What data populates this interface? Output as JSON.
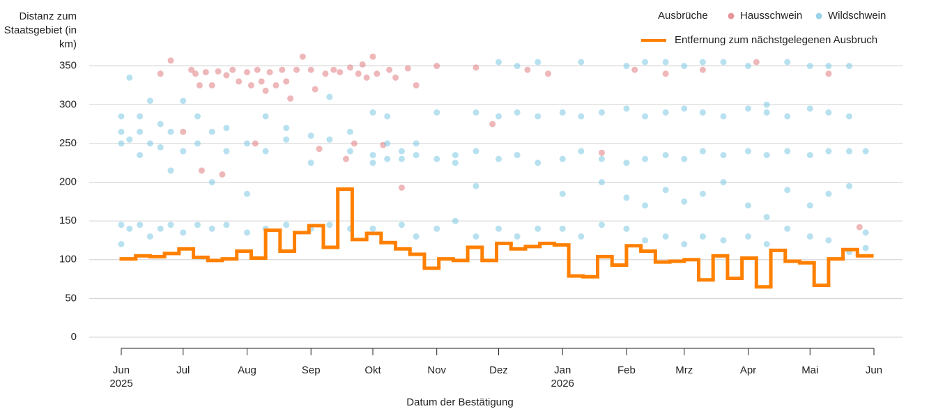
{
  "chart_data": {
    "type": "scatter",
    "y_label": "Distanz zum Staatsgebiet (in km)",
    "x_label": "Datum der Bestätigung",
    "legend_title": "Ausbrüche",
    "xlim": [
      "2025-06-01",
      "2026-06-01"
    ],
    "ylim": [
      0,
      365
    ],
    "yticks": [
      0,
      50,
      100,
      150,
      200,
      250,
      300,
      350
    ],
    "xticks": [
      {
        "value": "2025-06-01",
        "label": "Jun",
        "year": "2025"
      },
      {
        "value": "2025-07-01",
        "label": "Jul"
      },
      {
        "value": "2025-08-01",
        "label": "Aug"
      },
      {
        "value": "2025-09-01",
        "label": "Sep"
      },
      {
        "value": "2025-10-01",
        "label": "Okt"
      },
      {
        "value": "2025-11-01",
        "label": "Nov"
      },
      {
        "value": "2025-12-01",
        "label": "Dez"
      },
      {
        "value": "2026-01-01",
        "label": "Jan",
        "year": "2026"
      },
      {
        "value": "2026-02-01",
        "label": "Feb"
      },
      {
        "value": "2026-03-01",
        "label": "Mrz"
      },
      {
        "value": "2026-04-01",
        "label": "Apr"
      },
      {
        "value": "2026-05-01",
        "label": "Mai"
      },
      {
        "value": "2026-06-01",
        "label": "Jun"
      }
    ],
    "grid": true,
    "series": [
      {
        "name": "Hausschwein",
        "type": "scatter",
        "color": "#e07b7f",
        "x": [
          "2025-06-20",
          "2025-06-25",
          "2025-07-01",
          "2025-07-05",
          "2025-07-07",
          "2025-07-09",
          "2025-07-10",
          "2025-07-12",
          "2025-07-15",
          "2025-07-18",
          "2025-07-20",
          "2025-07-22",
          "2025-07-25",
          "2025-07-28",
          "2025-08-01",
          "2025-08-03",
          "2025-08-05",
          "2025-08-06",
          "2025-08-08",
          "2025-08-10",
          "2025-08-12",
          "2025-08-15",
          "2025-08-18",
          "2025-08-20",
          "2025-08-22",
          "2025-08-25",
          "2025-08-28",
          "2025-09-01",
          "2025-09-03",
          "2025-09-05",
          "2025-09-08",
          "2025-09-12",
          "2025-09-15",
          "2025-09-18",
          "2025-09-20",
          "2025-09-22",
          "2025-09-24",
          "2025-09-26",
          "2025-09-28",
          "2025-10-01",
          "2025-10-03",
          "2025-10-06",
          "2025-10-09",
          "2025-10-12",
          "2025-10-15",
          "2025-10-18",
          "2025-10-22",
          "2025-11-01",
          "2025-11-20",
          "2025-11-28",
          "2025-12-15",
          "2025-12-25",
          "2026-01-20",
          "2026-02-05",
          "2026-02-20",
          "2026-03-10",
          "2026-04-05",
          "2026-05-10",
          "2026-05-25"
        ],
        "values": [
          340,
          357,
          265,
          345,
          340,
          325,
          215,
          342,
          325,
          343,
          210,
          338,
          345,
          330,
          342,
          325,
          250,
          345,
          330,
          318,
          342,
          325,
          345,
          330,
          308,
          345,
          362,
          345,
          320,
          243,
          340,
          345,
          342,
          230,
          348,
          250,
          340,
          352,
          335,
          362,
          340,
          248,
          345,
          335,
          193,
          347,
          325,
          350,
          348,
          275,
          345,
          340,
          238,
          345,
          340,
          345,
          355,
          340,
          142
        ]
      },
      {
        "name": "Wildschwein",
        "type": "scatter",
        "color": "#7ec8e3",
        "x": [
          "2025-06-01",
          "2025-06-01",
          "2025-06-01",
          "2025-06-01",
          "2025-06-01",
          "2025-06-05",
          "2025-06-05",
          "2025-06-05",
          "2025-06-10",
          "2025-06-10",
          "2025-06-10",
          "2025-06-10",
          "2025-06-15",
          "2025-06-15",
          "2025-06-15",
          "2025-06-20",
          "2025-06-20",
          "2025-06-20",
          "2025-06-25",
          "2025-06-25",
          "2025-06-25",
          "2025-07-01",
          "2025-07-01",
          "2025-07-01",
          "2025-07-08",
          "2025-07-08",
          "2025-07-08",
          "2025-07-15",
          "2025-07-15",
          "2025-07-15",
          "2025-07-22",
          "2025-07-22",
          "2025-07-22",
          "2025-08-01",
          "2025-08-01",
          "2025-08-01",
          "2025-08-10",
          "2025-08-10",
          "2025-08-10",
          "2025-08-20",
          "2025-08-20",
          "2025-08-20",
          "2025-09-01",
          "2025-09-01",
          "2025-09-01",
          "2025-09-10",
          "2025-09-10",
          "2025-09-10",
          "2025-09-20",
          "2025-09-20",
          "2025-09-20",
          "2025-10-01",
          "2025-10-01",
          "2025-10-01",
          "2025-10-01",
          "2025-10-08",
          "2025-10-08",
          "2025-10-08",
          "2025-10-15",
          "2025-10-15",
          "2025-10-15",
          "2025-10-22",
          "2025-10-22",
          "2025-10-22",
          "2025-11-01",
          "2025-11-01",
          "2025-11-01",
          "2025-11-10",
          "2025-11-10",
          "2025-11-10",
          "2025-11-20",
          "2025-11-20",
          "2025-11-20",
          "2025-11-20",
          "2025-12-01",
          "2025-12-01",
          "2025-12-01",
          "2025-12-01",
          "2025-12-10",
          "2025-12-10",
          "2025-12-10",
          "2025-12-10",
          "2025-12-20",
          "2025-12-20",
          "2025-12-20",
          "2025-12-20",
          "2026-01-01",
          "2026-01-01",
          "2026-01-01",
          "2026-01-01",
          "2026-01-10",
          "2026-01-10",
          "2026-01-10",
          "2026-01-10",
          "2026-01-20",
          "2026-01-20",
          "2026-01-20",
          "2026-01-20",
          "2026-02-01",
          "2026-02-01",
          "2026-02-01",
          "2026-02-01",
          "2026-02-01",
          "2026-02-10",
          "2026-02-10",
          "2026-02-10",
          "2026-02-10",
          "2026-02-10",
          "2026-02-20",
          "2026-02-20",
          "2026-02-20",
          "2026-02-20",
          "2026-02-20",
          "2026-03-01",
          "2026-03-01",
          "2026-03-01",
          "2026-03-01",
          "2026-03-01",
          "2026-03-10",
          "2026-03-10",
          "2026-03-10",
          "2026-03-10",
          "2026-03-10",
          "2026-03-20",
          "2026-03-20",
          "2026-03-20",
          "2026-03-20",
          "2026-03-20",
          "2026-04-01",
          "2026-04-01",
          "2026-04-01",
          "2026-04-01",
          "2026-04-01",
          "2026-04-10",
          "2026-04-10",
          "2026-04-10",
          "2026-04-10",
          "2026-04-10",
          "2026-04-20",
          "2026-04-20",
          "2026-04-20",
          "2026-04-20",
          "2026-04-20",
          "2026-05-01",
          "2026-05-01",
          "2026-05-01",
          "2026-05-01",
          "2026-05-01",
          "2026-05-10",
          "2026-05-10",
          "2026-05-10",
          "2026-05-10",
          "2026-05-10",
          "2026-05-20",
          "2026-05-20",
          "2026-05-20",
          "2026-05-20",
          "2026-05-20",
          "2026-05-28",
          "2026-05-28",
          "2026-05-28"
        ],
        "values": [
          120,
          145,
          250,
          265,
          285,
          140,
          255,
          335,
          145,
          235,
          265,
          285,
          130,
          250,
          305,
          140,
          245,
          275,
          145,
          215,
          265,
          135,
          240,
          305,
          145,
          250,
          285,
          140,
          265,
          200,
          145,
          270,
          240,
          135,
          250,
          185,
          140,
          240,
          285,
          145,
          255,
          270,
          140,
          260,
          225,
          145,
          255,
          310,
          140,
          240,
          265,
          235,
          290,
          140,
          225,
          230,
          250,
          285,
          230,
          240,
          145,
          235,
          250,
          130,
          230,
          290,
          140,
          225,
          235,
          150,
          290,
          240,
          130,
          195,
          285,
          230,
          140,
          355,
          290,
          235,
          130,
          350,
          285,
          225,
          140,
          355,
          290,
          230,
          140,
          185,
          285,
          240,
          130,
          355,
          290,
          230,
          145,
          200,
          295,
          225,
          140,
          180,
          350,
          285,
          230,
          125,
          170,
          355,
          290,
          235,
          130,
          190,
          355,
          295,
          230,
          120,
          175,
          350,
          290,
          240,
          130,
          185,
          355,
          285,
          235,
          125,
          200,
          355,
          295,
          240,
          130,
          170,
          350,
          290,
          235,
          120,
          155,
          300,
          285,
          240,
          140,
          190,
          355,
          295,
          235,
          130,
          170,
          350,
          290,
          240,
          125,
          185,
          350,
          285,
          240,
          110,
          195,
          350,
          240,
          115,
          135
        ]
      },
      {
        "name": "Entfernung zum nächstgelegenen Ausbruch",
        "type": "step",
        "color": "#ff8000",
        "x": [
          "2025-06-01",
          "2025-06-08",
          "2025-06-15",
          "2025-06-22",
          "2025-06-29",
          "2025-07-06",
          "2025-07-13",
          "2025-07-20",
          "2025-07-27",
          "2025-08-03",
          "2025-08-10",
          "2025-08-17",
          "2025-08-24",
          "2025-08-31",
          "2025-09-07",
          "2025-09-14",
          "2025-09-21",
          "2025-09-28",
          "2025-10-05",
          "2025-10-12",
          "2025-10-19",
          "2025-10-26",
          "2025-11-02",
          "2025-11-09",
          "2025-11-16",
          "2025-11-23",
          "2025-11-30",
          "2025-12-07",
          "2025-12-14",
          "2025-12-21",
          "2025-12-28",
          "2026-01-04",
          "2026-01-11",
          "2026-01-18",
          "2026-01-25",
          "2026-02-01",
          "2026-02-08",
          "2026-02-15",
          "2026-02-22",
          "2026-03-01",
          "2026-03-08",
          "2026-03-15",
          "2026-03-22",
          "2026-03-29",
          "2026-04-05",
          "2026-04-12",
          "2026-04-19",
          "2026-04-26",
          "2026-05-03",
          "2026-05-10",
          "2026-05-17",
          "2026-05-24"
        ],
        "values": [
          101,
          105,
          104,
          108,
          114,
          103,
          99,
          101,
          111,
          102,
          138,
          111,
          135,
          144,
          116,
          191,
          126,
          134,
          122,
          114,
          107,
          89,
          101,
          99,
          116,
          99,
          121,
          114,
          117,
          121,
          119,
          79,
          78,
          104,
          93,
          118,
          111,
          97,
          98,
          100,
          74,
          105,
          76,
          102,
          65,
          112,
          98,
          96,
          67,
          101,
          113,
          105
        ]
      }
    ]
  }
}
